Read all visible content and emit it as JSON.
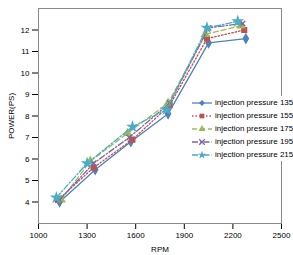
{
  "chart_data": {
    "type": "line",
    "x_label": "RPM",
    "y_label": "POWER(PS)",
    "xlim": [
      1000,
      2500
    ],
    "xticks": [
      1000,
      1300,
      1600,
      1900,
      2200,
      2500
    ],
    "ylim": [
      3,
      13
    ],
    "yticks": [
      4,
      5,
      6,
      7,
      8,
      9,
      10,
      11,
      12
    ],
    "grid": false,
    "legend": "right",
    "series": [
      {
        "name": "injection pressure 135",
        "color": "#4f81bd",
        "marker": "diamond",
        "line_style": "solid",
        "x": [
          1130,
          1350,
          1570,
          1800,
          2050,
          2280
        ],
        "values": [
          4.0,
          5.5,
          6.8,
          8.1,
          11.4,
          11.6
        ]
      },
      {
        "name": "injection pressure 155",
        "color": "#c0504d",
        "marker": "square",
        "line_style": "dotted",
        "x": [
          1120,
          1340,
          1580,
          1810,
          2040,
          2270
        ],
        "values": [
          4.1,
          5.6,
          6.9,
          8.5,
          11.6,
          12.0
        ]
      },
      {
        "name": "injection pressure 175",
        "color": "#9bbb59",
        "marker": "triangle",
        "line_style": "dashed",
        "x": [
          1140,
          1320,
          1550,
          1800,
          2030,
          2250
        ],
        "values": [
          4.1,
          5.9,
          7.2,
          8.6,
          11.8,
          12.2
        ]
      },
      {
        "name": "injection pressure 195",
        "color": "#8064a2",
        "marker": "cross",
        "line_style": "dashdot",
        "x": [
          1130,
          1340,
          1560,
          1810,
          2050,
          2260
        ],
        "values": [
          4.1,
          5.8,
          7.0,
          8.6,
          12.1,
          12.3
        ]
      },
      {
        "name": "injection pressure 215",
        "color": "#4bacc6",
        "marker": "star",
        "line_style": "dashdot",
        "x": [
          1110,
          1300,
          1580,
          1790,
          2040,
          2230
        ],
        "values": [
          4.2,
          5.8,
          7.5,
          8.3,
          12.1,
          12.4
        ]
      }
    ]
  }
}
